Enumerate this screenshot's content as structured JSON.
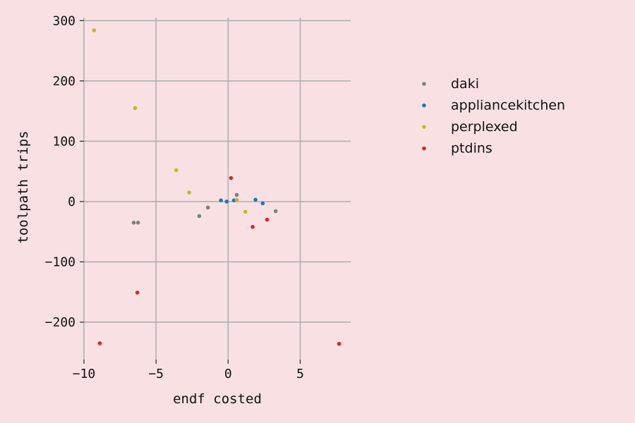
{
  "chart_data": {
    "type": "scatter",
    "title": "",
    "xlabel": "endf costed",
    "ylabel": "toolpath trips",
    "xlim": [
      -10,
      8.5
    ],
    "ylim": [
      -262,
      305
    ],
    "xticks": [
      -10,
      -5,
      0,
      5
    ],
    "yticks": [
      -200,
      -100,
      0,
      100,
      200,
      300
    ],
    "xtick_labels": [
      "−10",
      "−5",
      "0",
      "5"
    ],
    "ytick_labels": [
      "−200",
      "−100",
      "0",
      "100",
      "200",
      "300"
    ],
    "grid": true,
    "legend_position": "right",
    "series": [
      {
        "name": "daki",
        "color": "#7f7f7f",
        "points": [
          [
            -6.55,
            -35
          ],
          [
            -6.25,
            -35
          ],
          [
            -2.0,
            -24
          ],
          [
            -1.4,
            -10
          ],
          [
            0.6,
            11
          ],
          [
            3.3,
            -16
          ]
        ]
      },
      {
        "name": "appliancekitchen",
        "color": "#1f77b4",
        "points": [
          [
            -0.5,
            2
          ],
          [
            -0.1,
            0
          ],
          [
            0.4,
            2
          ],
          [
            1.9,
            3
          ],
          [
            2.4,
            -3
          ]
        ]
      },
      {
        "name": "perplexed",
        "color": "#bcbd22",
        "points": [
          [
            -9.3,
            284
          ],
          [
            -6.45,
            155
          ],
          [
            -3.6,
            52
          ],
          [
            -2.7,
            15
          ],
          [
            0.6,
            3
          ],
          [
            1.2,
            -17
          ]
        ]
      },
      {
        "name": "ptdins",
        "color": "#d62728",
        "points": [
          [
            -8.9,
            -235
          ],
          [
            -6.3,
            -151
          ],
          [
            0.2,
            39
          ],
          [
            1.7,
            -42
          ],
          [
            2.7,
            -30
          ],
          [
            7.7,
            -236
          ]
        ]
      }
    ]
  }
}
